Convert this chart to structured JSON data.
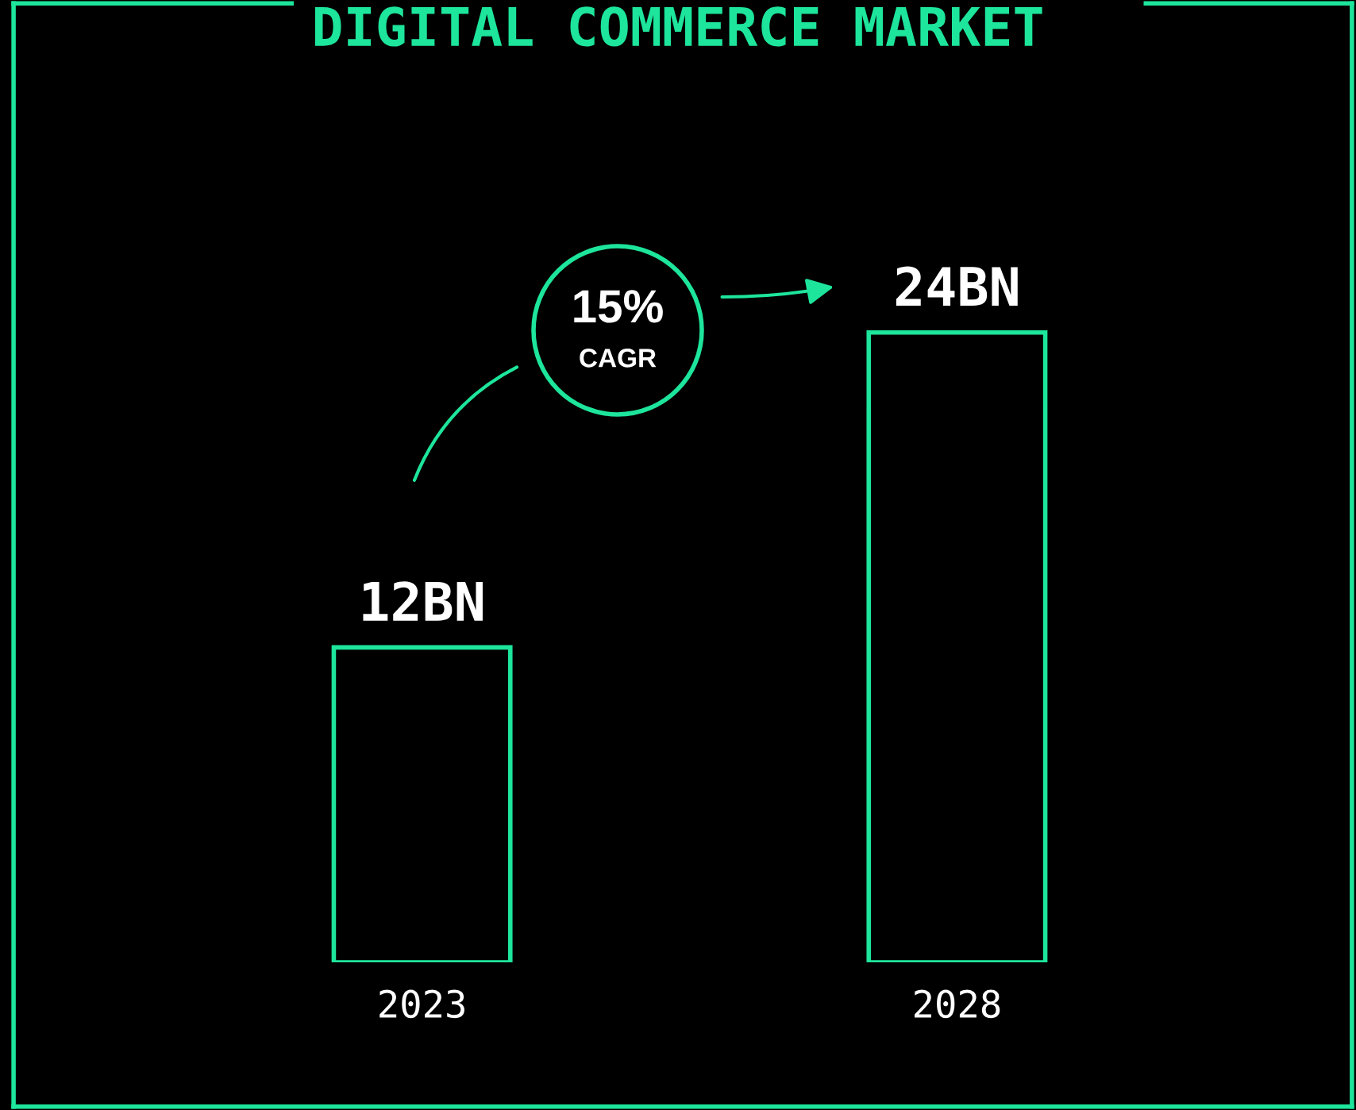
{
  "chart_data": {
    "type": "bar",
    "title": "DIGITAL COMMERCE MARKET",
    "categories": [
      "2023",
      "2028"
    ],
    "values": [
      12,
      24
    ],
    "value_labels": [
      "12BN",
      "24BN"
    ],
    "color": "#1de59b",
    "annotations": [
      "15%",
      "CAGR"
    ],
    "grid": false,
    "legend": false
  }
}
